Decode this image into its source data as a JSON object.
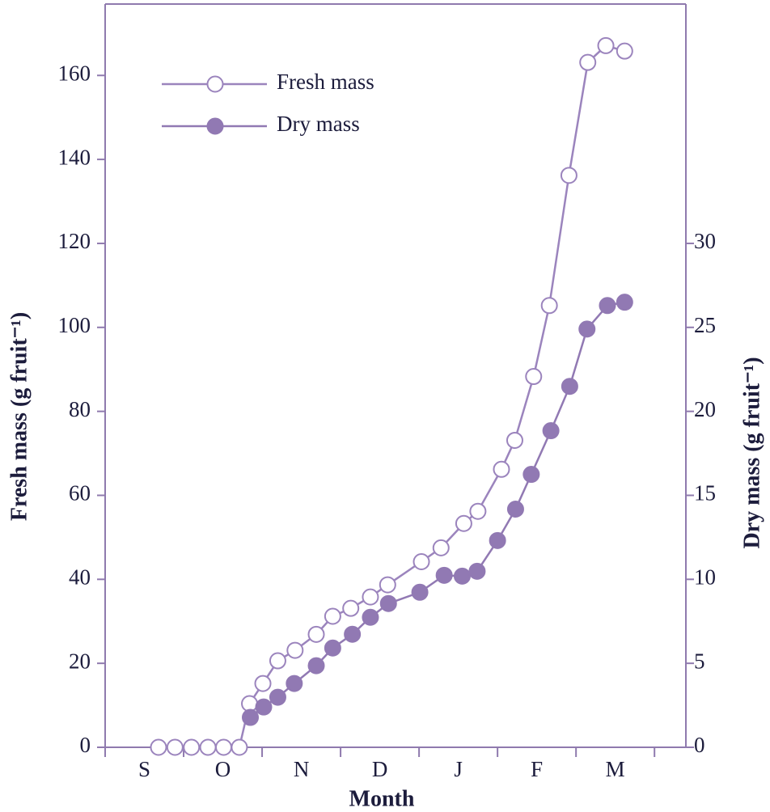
{
  "chart_data": {
    "type": "line",
    "xlabel": "Month",
    "ylabel": "Fresh mass (g fruit⁻¹)",
    "y2label": "Dry mass (g fruit⁻¹)",
    "xlim": [
      0,
      7.4
    ],
    "xticks": [
      {
        "value": 0.5,
        "label": "S"
      },
      {
        "value": 1.5,
        "label": "O"
      },
      {
        "value": 2.5,
        "label": "N"
      },
      {
        "value": 3.5,
        "label": "D"
      },
      {
        "value": 4.5,
        "label": "J"
      },
      {
        "value": 5.5,
        "label": "F"
      },
      {
        "value": 6.5,
        "label": "M"
      }
    ],
    "ylim": [
      0,
      177
    ],
    "yticks": [
      0,
      20,
      40,
      60,
      80,
      100,
      120,
      140,
      160
    ],
    "y2lim": [
      0,
      44.25
    ],
    "y2ticks": [
      0,
      5,
      10,
      15,
      20,
      25,
      30
    ],
    "legend": "upper left",
    "series": [
      {
        "name": "Fresh mass",
        "color": "#9b84bd",
        "marker": "open",
        "axis": "y",
        "x": [
          0.68,
          0.89,
          1.1,
          1.31,
          1.51,
          1.71,
          1.84,
          2.01,
          2.2,
          2.42,
          2.69,
          2.9,
          3.13,
          3.38,
          3.6,
          4.03,
          4.28,
          4.57,
          4.75,
          5.05,
          5.22,
          5.46,
          5.66,
          5.91,
          6.15,
          6.38,
          6.62
        ],
        "values": [
          0,
          0,
          0,
          0,
          0,
          0,
          10.4,
          15.2,
          20.6,
          23.1,
          26.9,
          31.2,
          33.1,
          35.8,
          38.7,
          44.2,
          47.5,
          53.3,
          56.2,
          66.2,
          73.1,
          88.3,
          105.2,
          136.2,
          163.1,
          167.1,
          165.8
        ]
      },
      {
        "name": "Dry mass",
        "color": "#9179b3",
        "marker": "filled",
        "axis": "y2",
        "x": [
          1.85,
          2.02,
          2.2,
          2.41,
          2.69,
          2.9,
          3.15,
          3.38,
          3.61,
          4.01,
          4.32,
          4.55,
          4.74,
          5.0,
          5.23,
          5.43,
          5.68,
          5.92,
          6.14,
          6.4,
          6.62
        ],
        "values": [
          1.78,
          2.4,
          2.98,
          3.8,
          4.86,
          5.91,
          6.73,
          7.74,
          8.56,
          9.23,
          10.24,
          10.19,
          10.48,
          12.31,
          14.18,
          16.25,
          18.85,
          21.49,
          24.9,
          26.3,
          26.5
        ]
      }
    ]
  }
}
